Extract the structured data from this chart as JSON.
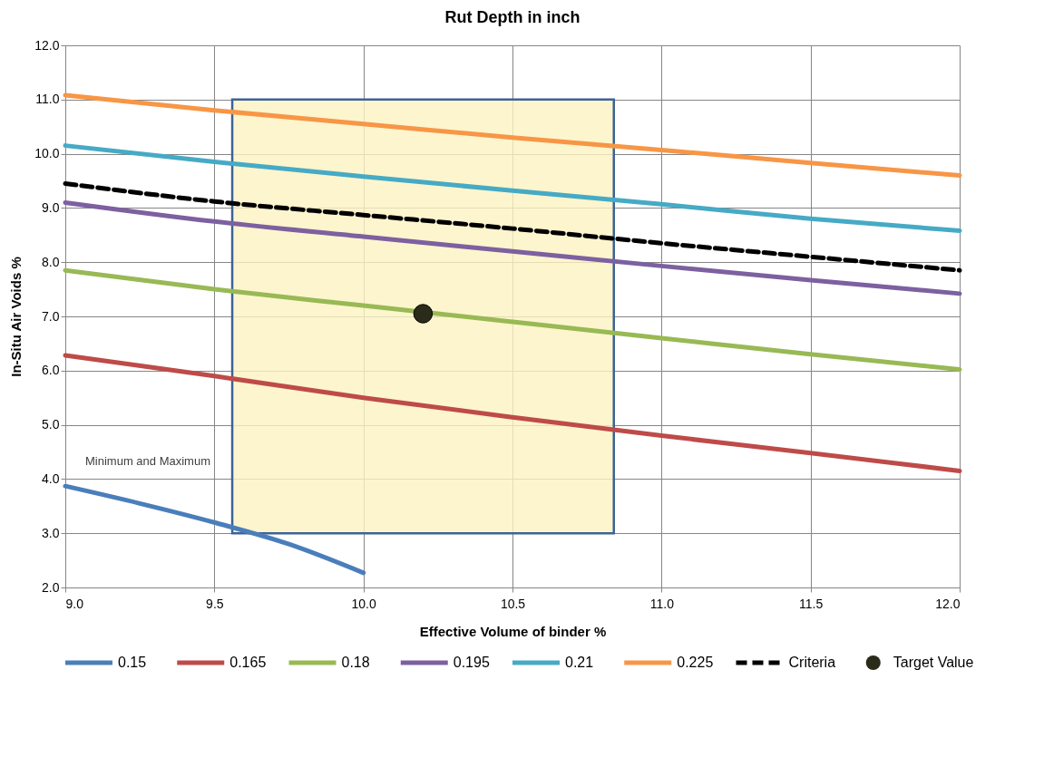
{
  "chart_data": {
    "type": "line",
    "title": "Rut Depth in inch",
    "xlabel": "Effective Volume of binder %",
    "ylabel": "In-Situ Air Voids %",
    "xlim": [
      9.0,
      12.0
    ],
    "ylim": [
      2.0,
      12.0
    ],
    "xticks": [
      {
        "value": 9,
        "label": "9.0"
      },
      {
        "value": 9.5,
        "label": "9.5"
      },
      {
        "value": 10,
        "label": "10.0"
      },
      {
        "value": 10.5,
        "label": "10.5"
      },
      {
        "value": 11,
        "label": "11.0"
      },
      {
        "value": 11.5,
        "label": "11.5"
      },
      {
        "value": 12,
        "label": "12.0"
      }
    ],
    "yticks": [
      {
        "value": 2,
        "label": "2.0"
      },
      {
        "value": 3,
        "label": "3.0"
      },
      {
        "value": 4,
        "label": "4.0"
      },
      {
        "value": 5,
        "label": "5.0"
      },
      {
        "value": 6,
        "label": "6.0"
      },
      {
        "value": 7,
        "label": "7.0"
      },
      {
        "value": 8,
        "label": "8.0"
      },
      {
        "value": 9,
        "label": "9.0"
      },
      {
        "value": 10,
        "label": "10.0"
      },
      {
        "value": 11,
        "label": "11.0"
      },
      {
        "value": 12,
        "label": "12.0"
      }
    ],
    "grid": true,
    "legend": "bottom",
    "series": [
      {
        "type": "area",
        "color": "#3d6396",
        "x": [
          9.56,
          9.56,
          10.84,
          10.84,
          9.56
        ],
        "values": [
          3,
          11,
          11,
          3,
          3
        ]
      },
      {
        "name": "0.15",
        "color": "#4a7ebb",
        "line_style": "solid",
        "marker": "none",
        "x": [
          9.0,
          9.25,
          9.5,
          9.75,
          10.0
        ],
        "values": [
          3.87,
          3.55,
          3.2,
          2.8,
          2.27
        ]
      },
      {
        "name": "0.165",
        "color": "#be4b48",
        "line_style": "solid",
        "marker": "none",
        "x": [
          9.0,
          9.5,
          10.0,
          10.5,
          11.0,
          11.5,
          12.0
        ],
        "values": [
          6.28,
          5.9,
          5.5,
          5.14,
          4.8,
          4.48,
          4.15
        ]
      },
      {
        "name": "0.18",
        "color": "#98b954",
        "line_style": "solid",
        "marker": "none",
        "x": [
          9.0,
          9.5,
          10.0,
          10.5,
          11.0,
          11.5,
          12.0
        ],
        "values": [
          7.85,
          7.5,
          7.2,
          6.9,
          6.6,
          6.3,
          6.02
        ]
      },
      {
        "name": "0.195",
        "color": "#7d60a0",
        "line_style": "solid",
        "marker": "none",
        "x": [
          9.0,
          9.5,
          10.0,
          10.5,
          11.0,
          11.5,
          12.0
        ],
        "values": [
          9.1,
          8.75,
          8.47,
          8.2,
          7.93,
          7.67,
          7.42
        ]
      },
      {
        "name": "0.21",
        "color": "#46aac5",
        "line_style": "solid",
        "marker": "none",
        "x": [
          9.0,
          9.5,
          10.0,
          10.5,
          11.0,
          11.5,
          12.0
        ],
        "values": [
          10.15,
          9.85,
          9.58,
          9.32,
          9.07,
          8.8,
          8.58
        ]
      },
      {
        "name": "0.225",
        "color": "#f79646",
        "line_style": "solid",
        "marker": "none",
        "x": [
          9.0,
          9.5,
          10.0,
          10.5,
          11.0,
          11.5,
          12.0
        ],
        "values": [
          11.08,
          10.8,
          10.55,
          10.3,
          10.07,
          9.83,
          9.6
        ]
      },
      {
        "name": "Criteria",
        "color": "#000000",
        "line_style": "dashed",
        "marker": "none",
        "x": [
          9.0,
          9.5,
          10.0,
          10.5,
          11.0,
          11.5,
          12.0
        ],
        "values": [
          9.45,
          9.12,
          8.87,
          8.62,
          8.35,
          8.1,
          7.85
        ]
      },
      {
        "name": "Target Value",
        "type": "scatter",
        "color": "#2b2b1a",
        "marker": "circle",
        "x": [
          10.2
        ],
        "values": [
          7.05
        ]
      }
    ],
    "annotations": [
      "Minimum and Maximum"
    ]
  }
}
